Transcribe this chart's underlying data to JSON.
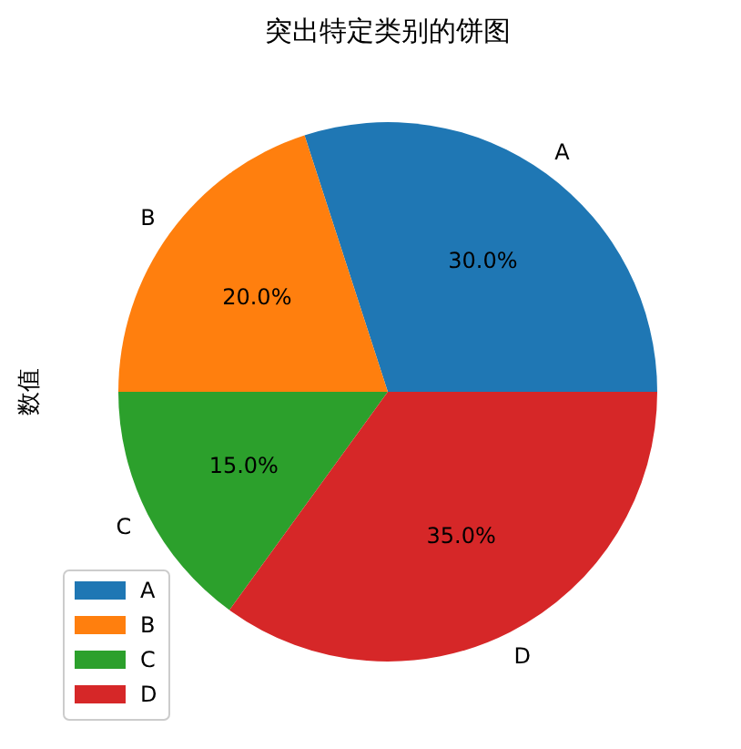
{
  "chart_data": {
    "type": "pie",
    "title": "突出特定类别的饼图",
    "ylabel": "数值",
    "categories": [
      "A",
      "B",
      "C",
      "D"
    ],
    "values": [
      30,
      20,
      15,
      35
    ],
    "colors": [
      "#1f77b4",
      "#ff7f0e",
      "#2ca02c",
      "#d62728"
    ],
    "value_labels": [
      "30.0%",
      "20.0%",
      "15.0%",
      "35.0%"
    ],
    "legend": "bottom left"
  }
}
